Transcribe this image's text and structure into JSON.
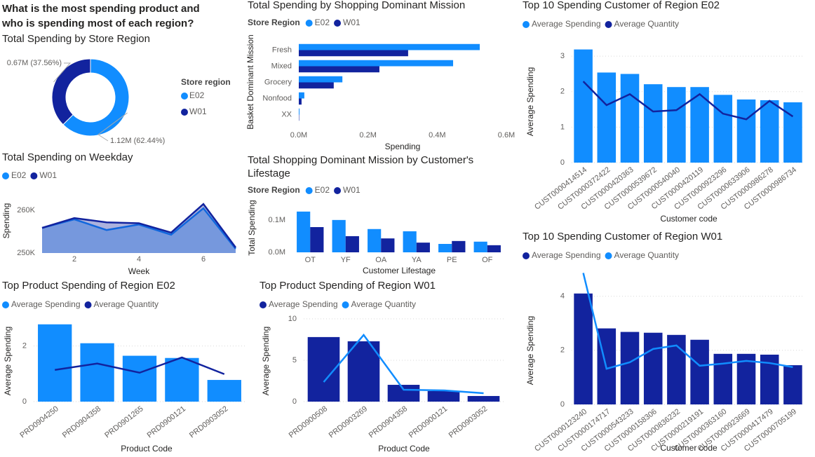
{
  "heading": "What is the most spending product and who is spending most of each region?",
  "chart_data": [
    {
      "type": "pie",
      "donut": true,
      "title": "Total Spending by Store Region",
      "legend_title": "Store region",
      "categories": [
        "E02",
        "W01"
      ],
      "values": [
        1120000,
        670000
      ],
      "value_labels": [
        "1.12M (62.44%)",
        "0.67M (37.56%)"
      ],
      "colors": [
        "#118DFF",
        "#12239E"
      ]
    },
    {
      "type": "bar",
      "orientation": "horizontal",
      "title": "Total Spending by Shopping Dominant Mission",
      "legend_title": "Store Region",
      "categories": [
        "Fresh",
        "Mixed",
        "Grocery",
        "Nonfood",
        "XX"
      ],
      "series": [
        {
          "name": "E02",
          "color": "#118DFF",
          "values": [
            523000,
            446000,
            126000,
            16000,
            2000
          ]
        },
        {
          "name": "W01",
          "color": "#12239E",
          "values": [
            316000,
            233000,
            101000,
            8000,
            1000
          ]
        }
      ],
      "xlim": [
        0,
        600000
      ],
      "xticks": [
        {
          "value": 0,
          "label": "0.0M"
        },
        {
          "value": 200000,
          "label": "0.2M"
        },
        {
          "value": 400000,
          "label": "0.4M"
        },
        {
          "value": 600000,
          "label": "0.6M"
        }
      ],
      "x_label": "Spending",
      "y_label": "Basket Dominant Mission"
    },
    {
      "type": "area",
      "title": "Total Spending on Weekday",
      "x": [
        1,
        2,
        3,
        4,
        5,
        6,
        7
      ],
      "series": [
        {
          "name": "E02",
          "color": "#118DFF",
          "values": [
            255900,
            257900,
            255400,
            256700,
            254300,
            260500,
            251000
          ]
        },
        {
          "name": "W01",
          "color": "#12239E",
          "values": [
            255900,
            258200,
            257200,
            257000,
            254800,
            261500,
            251300
          ]
        }
      ],
      "xlim": [
        1,
        7
      ],
      "xticks": [
        2,
        4,
        6
      ],
      "ylim": [
        250000,
        262500
      ],
      "yticks": [
        {
          "value": 250000,
          "label": "250K"
        },
        {
          "value": 260000,
          "label": "260K"
        }
      ],
      "x_label": "Week",
      "y_label": "Spending"
    },
    {
      "type": "bar",
      "orientation": "vertical",
      "title": "Total Shopping Dominant Mission by Customer's Lifestage",
      "legend_title": "Store Region",
      "categories": [
        "OT",
        "YF",
        "OA",
        "YA",
        "PE",
        "OF"
      ],
      "series": [
        {
          "name": "E02",
          "color": "#118DFF",
          "values": [
            126000,
            100000,
            72000,
            65000,
            26000,
            33000
          ]
        },
        {
          "name": "W01",
          "color": "#12239E",
          "values": [
            78000,
            50000,
            43000,
            30000,
            35000,
            22000
          ]
        }
      ],
      "ylim": [
        0,
        130000
      ],
      "yticks": [
        {
          "value": 0,
          "label": "0.0M"
        },
        {
          "value": 100000,
          "label": "0.1M"
        }
      ],
      "x_label": "Customer Lifestage",
      "y_label": "Total Spending"
    },
    {
      "type": "combo",
      "title": "Top 10 Spending Customer of Region E02",
      "grid": true,
      "categories": [
        "CUST0000414514",
        "CUST0000372422",
        "CUST0000420363",
        "CUST0000539672",
        "CUST0000540040",
        "CUST0000420119",
        "CUST0000923296",
        "CUST0000633906",
        "CUST0000986278",
        "CUST0000986734"
      ],
      "series": [
        {
          "name": "Average Spending",
          "kind": "bar",
          "color": "#118DFF",
          "values": [
            3.19,
            2.54,
            2.5,
            2.21,
            2.13,
            2.13,
            1.91,
            1.78,
            1.76,
            1.7
          ]
        },
        {
          "name": "Average Quantity",
          "kind": "line",
          "color": "#12239E",
          "values": [
            2.29,
            1.62,
            1.93,
            1.44,
            1.48,
            1.93,
            1.38,
            1.22,
            1.74,
            1.3
          ]
        }
      ],
      "ylim": [
        0,
        3.3
      ],
      "yticks": [
        0,
        1,
        2,
        3
      ],
      "x_label": "Customer code",
      "y_label": "Average Spending"
    },
    {
      "type": "combo",
      "title": "Top 10 Spending Customer of Region W01",
      "grid": true,
      "categories": [
        "CUST0000123240",
        "CUST0000174717",
        "CUST0000543233",
        "CUST0000158306",
        "CUST0000836232",
        "CUST0000219191",
        "CUST0000363160",
        "CUST0000923669",
        "CUST0000417479",
        "CUST0000705199"
      ],
      "series": [
        {
          "name": "Average Spending",
          "kind": "bar",
          "color": "#12239E",
          "values": [
            4.1,
            2.81,
            2.68,
            2.65,
            2.57,
            2.39,
            1.87,
            1.87,
            1.84,
            1.45
          ]
        },
        {
          "name": "Average Quantity",
          "kind": "line",
          "color": "#118DFF",
          "values": [
            4.86,
            1.32,
            1.56,
            2.05,
            2.18,
            1.43,
            1.51,
            1.61,
            1.53,
            1.38
          ]
        }
      ],
      "ylim": [
        0,
        5
      ],
      "yticks": [
        0,
        2,
        4
      ],
      "x_label": "Customer code",
      "y_label": "Average Spending"
    },
    {
      "type": "combo",
      "title": "Top Product Spending of Region E02",
      "grid": true,
      "categories": [
        "PRD0904250",
        "PRD0904358",
        "PRD0901265",
        "PRD0900121",
        "PRD0903052"
      ],
      "series": [
        {
          "name": "Average Spending",
          "kind": "bar",
          "color": "#118DFF",
          "values": [
            2.78,
            2.1,
            1.65,
            1.57,
            0.78
          ]
        },
        {
          "name": "Average Quantity",
          "kind": "line",
          "color": "#12239E",
          "values": [
            1.14,
            1.37,
            1.04,
            1.59,
            0.99
          ]
        }
      ],
      "ylim": [
        0,
        3
      ],
      "yticks": [
        0,
        2
      ],
      "x_label": "Product Code",
      "y_label": "Average Spending"
    },
    {
      "type": "combo",
      "title": "Top Product Spending of Region W01",
      "grid": true,
      "categories": [
        "PRD0900508",
        "PRD0903269",
        "PRD0904358",
        "PRD0900121",
        "PRD0903052"
      ],
      "series": [
        {
          "name": "Average Spending",
          "kind": "bar",
          "color": "#12239E",
          "values": [
            7.8,
            7.29,
            2.03,
            1.27,
            0.68
          ]
        },
        {
          "name": "Average Quantity",
          "kind": "line",
          "color": "#118DFF",
          "values": [
            2.37,
            8.05,
            1.44,
            1.36,
            1.02
          ]
        }
      ],
      "ylim": [
        0,
        10.5
      ],
      "yticks": [
        0,
        5,
        10
      ],
      "x_label": "Product Code",
      "y_label": "Average Spending"
    }
  ]
}
